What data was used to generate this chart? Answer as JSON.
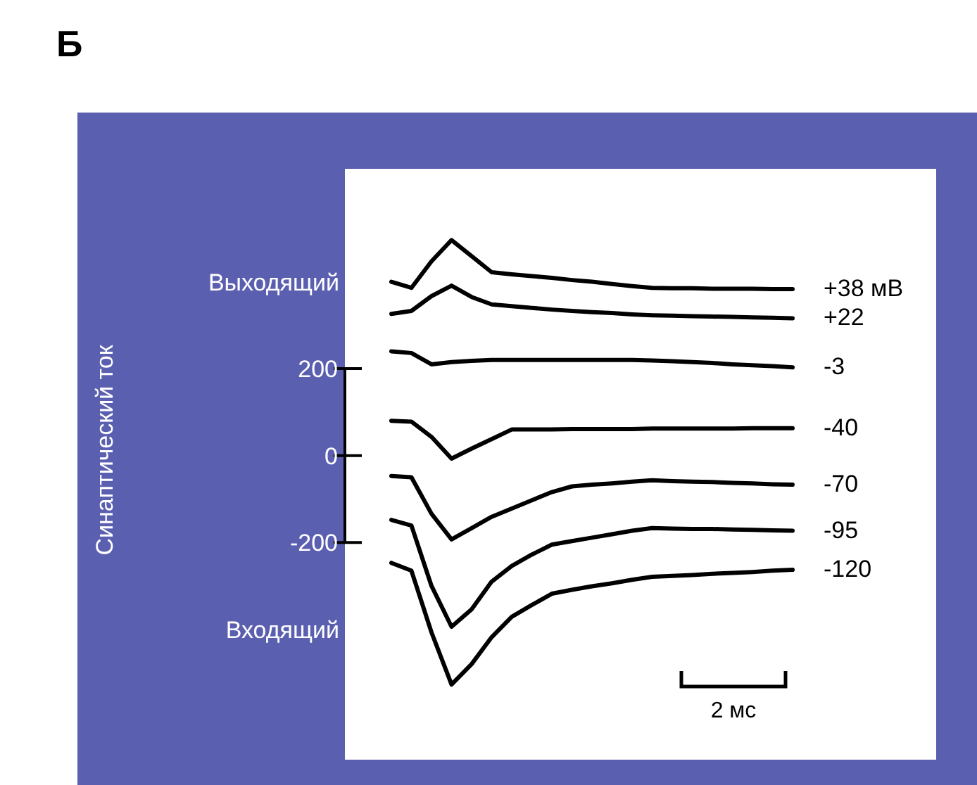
{
  "chart_data": {
    "type": "line",
    "title": "Б",
    "annotations": [
      "Выходящий",
      "Входящий",
      "2 мс",
      "Синаптический ток"
    ],
    "categories": [
      null,
      null,
      null,
      null,
      null,
      null,
      null,
      null,
      null,
      null,
      null,
      null,
      null,
      null,
      null,
      null,
      null,
      null,
      null,
      null,
      null
    ],
    "ylim": [
      -700,
      660
    ],
    "yticks": [
      200,
      0,
      -200
    ],
    "tick_labels": "y",
    "marker": "none",
    "line_style": "solid",
    "series": [
      {
        "name": "+38 мВ",
        "color": "#000000",
        "values": [
          400,
          386,
          447,
          496,
          459,
          422,
          417,
          413,
          409,
          404,
          400,
          395,
          390,
          386,
          385,
          385,
          384,
          384,
          384,
          383,
          383
        ]
      },
      {
        "name": "+22",
        "color": "#000000",
        "values": [
          326,
          333,
          367,
          391,
          365,
          348,
          344,
          340,
          336,
          333,
          330,
          328,
          325,
          323,
          322,
          321,
          320,
          319,
          318,
          317,
          316
        ]
      },
      {
        "name": "-3",
        "color": "#000000",
        "values": [
          240,
          236,
          210,
          215,
          218,
          220,
          220,
          220,
          220,
          220,
          220,
          220,
          220,
          219,
          217,
          215,
          213,
          210,
          208,
          206,
          203
        ]
      },
      {
        "name": "-40",
        "color": "#000000",
        "values": [
          80,
          78,
          43,
          -7,
          16,
          38,
          60,
          60,
          60,
          61,
          61,
          61,
          61,
          62,
          62,
          62,
          62,
          62,
          63,
          63,
          63
        ]
      },
      {
        "name": "-70",
        "color": "#000000",
        "values": [
          -47,
          -50,
          -134,
          -193,
          -167,
          -141,
          -122,
          -103,
          -84,
          -71,
          -67,
          -64,
          -60,
          -57,
          -59,
          -60,
          -61,
          -63,
          -64,
          -66,
          -67
        ]
      },
      {
        "name": "-95",
        "color": "#000000",
        "values": [
          -148,
          -161,
          -300,
          -394,
          -354,
          -290,
          -254,
          -228,
          -205,
          -197,
          -189,
          -181,
          -173,
          -167,
          -168,
          -169,
          -169,
          -170,
          -171,
          -172,
          -173
        ]
      },
      {
        "name": "-120",
        "color": "#000000",
        "values": [
          -247,
          -265,
          -407,
          -527,
          -480,
          -418,
          -371,
          -344,
          -318,
          -309,
          -301,
          -294,
          -286,
          -279,
          -277,
          -275,
          -272,
          -270,
          -268,
          -265,
          -263
        ]
      }
    ]
  }
}
